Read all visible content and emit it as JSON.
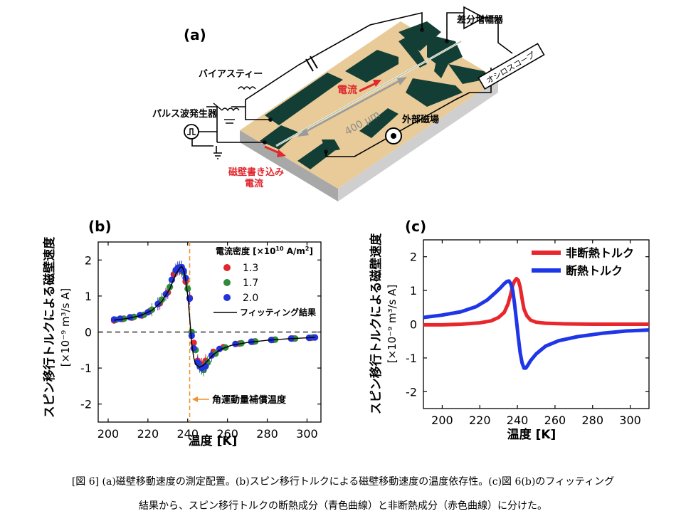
{
  "panel_a": {
    "label": "(a)",
    "diff_amp": "差分増幅器",
    "oscilloscope": "オシロスコープ",
    "bias_tee": "バイアスティー",
    "pulse_gen": "パルス波発生器",
    "current": "電流",
    "length": "400 μm",
    "ext_field": "外部磁場",
    "write_current_1": "磁壁書き込み",
    "write_current_2": "電流"
  },
  "chart_data": [
    {
      "type": "scatter",
      "panel": "(b)",
      "ylabel_1": "スピン移行トルクによる磁壁速度",
      "ylabel_2": "[×10⁻⁹ m³/s A]",
      "xlabel": "温度 [K]",
      "xlim": [
        195,
        307
      ],
      "ylim": [
        -2.5,
        2.5
      ],
      "xticks": [
        "200",
        "220",
        "240",
        "260",
        "280",
        "300"
      ],
      "yticks": [
        "-2",
        "-1",
        "0",
        "1",
        "2"
      ],
      "legend_title": "電流密度 [×10",
      "legend_title_sup": "10",
      "legend_title_rest": " A/m",
      "legend_title_sup2": "2",
      "legend_title_end": "]",
      "fit_label": "フィッティング結果",
      "annotation": "角運動量補償温度",
      "compensation_temperature": 241,
      "colors": {
        "red": "#e0282e",
        "green": "#2e8b3a",
        "blue": "#2233dd"
      },
      "series": [
        {
          "name": "1.3",
          "color": "#e0282e",
          "points": [
            [
              203,
              0.32
            ],
            [
              207,
              0.36
            ],
            [
              212,
              0.4
            ],
            [
              217,
              0.46
            ],
            [
              221,
              0.58
            ],
            [
              226,
              0.8
            ],
            [
              230,
              1.1
            ],
            [
              233,
              1.6
            ],
            [
              235,
              1.75
            ],
            [
              237,
              1.7
            ],
            [
              239,
              1.4
            ],
            [
              241,
              0.95
            ],
            [
              243,
              -0.3
            ],
            [
              245,
              -0.8
            ],
            [
              247,
              -0.9
            ],
            [
              249,
              -0.8
            ],
            [
              253,
              -0.55
            ],
            [
              258,
              -0.42
            ],
            [
              266,
              -0.32
            ],
            [
              273,
              -0.27
            ],
            [
              283,
              -0.22
            ],
            [
              293,
              -0.18
            ],
            [
              302,
              -0.16
            ]
          ]
        },
        {
          "name": "1.7",
          "color": "#2e8b3a",
          "points": [
            [
              204,
              0.34
            ],
            [
              208,
              0.37
            ],
            [
              213,
              0.42
            ],
            [
              218,
              0.48
            ],
            [
              222,
              0.62
            ],
            [
              227,
              0.9
            ],
            [
              231,
              1.25
            ],
            [
              234,
              1.7
            ],
            [
              236,
              1.8
            ],
            [
              238,
              1.65
            ],
            [
              240,
              1.2
            ],
            [
              242,
              0.0
            ],
            [
              244,
              -0.5
            ],
            [
              246,
              -0.95
            ],
            [
              248,
              -1.05
            ],
            [
              250,
              -0.85
            ],
            [
              254,
              -0.6
            ],
            [
              259,
              -0.43
            ],
            [
              267,
              -0.31
            ],
            [
              274,
              -0.26
            ],
            [
              284,
              -0.21
            ],
            [
              294,
              -0.18
            ],
            [
              303,
              -0.15
            ]
          ]
        },
        {
          "name": "2.0",
          "color": "#2233dd",
          "points": [
            [
              203,
              0.35
            ],
            [
              206,
              0.37
            ],
            [
              211,
              0.41
            ],
            [
              216,
              0.47
            ],
            [
              220,
              0.55
            ],
            [
              225,
              0.78
            ],
            [
              229,
              1.05
            ],
            [
              232,
              1.45
            ],
            [
              234,
              1.72
            ],
            [
              235,
              1.78
            ],
            [
              236,
              1.76
            ],
            [
              237,
              1.8
            ],
            [
              238,
              1.7
            ],
            [
              239,
              1.5
            ],
            [
              241,
              0.93
            ],
            [
              242,
              -0.1
            ],
            [
              243,
              -0.45
            ],
            [
              245,
              -0.85
            ],
            [
              247,
              -1.0
            ],
            [
              249,
              -0.95
            ],
            [
              252,
              -0.65
            ],
            [
              256,
              -0.47
            ],
            [
              264,
              -0.33
            ],
            [
              272,
              -0.27
            ],
            [
              282,
              -0.22
            ],
            [
              292,
              -0.18
            ],
            [
              301,
              -0.16
            ],
            [
              304,
              -0.15
            ]
          ]
        }
      ],
      "fit": [
        [
          203,
          0.33
        ],
        [
          210,
          0.38
        ],
        [
          216,
          0.45
        ],
        [
          222,
          0.6
        ],
        [
          227,
          0.85
        ],
        [
          231,
          1.2
        ],
        [
          234,
          1.6
        ],
        [
          236,
          1.78
        ],
        [
          237,
          1.82
        ],
        [
          238,
          1.72
        ],
        [
          239,
          1.45
        ],
        [
          240,
          1.0
        ],
        [
          241,
          0.4
        ],
        [
          242,
          -0.3
        ],
        [
          243,
          -0.7
        ],
        [
          244,
          -0.9
        ],
        [
          246,
          -0.98
        ],
        [
          248,
          -0.92
        ],
        [
          250,
          -0.8
        ],
        [
          253,
          -0.62
        ],
        [
          257,
          -0.47
        ],
        [
          262,
          -0.37
        ],
        [
          270,
          -0.29
        ],
        [
          280,
          -0.23
        ],
        [
          290,
          -0.19
        ],
        [
          304,
          -0.15
        ]
      ]
    },
    {
      "type": "line",
      "panel": "(c)",
      "ylabel_1": "スピン移行トルクによる磁壁速度",
      "ylabel_2": "[×10⁻⁹ m³/s A]",
      "xlabel": "温度 [K]",
      "xlim": [
        190,
        310
      ],
      "ylim": [
        -2.5,
        2.5
      ],
      "xticks": [
        "200",
        "220",
        "240",
        "260",
        "280",
        "300"
      ],
      "yticks": [
        "-2",
        "-1",
        "0",
        "1",
        "2"
      ],
      "series": [
        {
          "name": "非断熱トルク",
          "color": "#e8262c",
          "points": [
            [
              190,
              -0.02
            ],
            [
              200,
              -0.02
            ],
            [
              210,
              0.0
            ],
            [
              220,
              0.04
            ],
            [
              226,
              0.1
            ],
            [
              230,
              0.2
            ],
            [
              233,
              0.35
            ],
            [
              235,
              0.6
            ],
            [
              236.5,
              0.9
            ],
            [
              237.5,
              1.15
            ],
            [
              238.5,
              1.28
            ],
            [
              239.5,
              1.35
            ],
            [
              240.5,
              1.3
            ],
            [
              241.5,
              1.1
            ],
            [
              242.5,
              0.75
            ],
            [
              243.5,
              0.45
            ],
            [
              245,
              0.25
            ],
            [
              247,
              0.12
            ],
            [
              250,
              0.06
            ],
            [
              255,
              0.03
            ],
            [
              265,
              0.01
            ],
            [
              280,
              0.0
            ],
            [
              310,
              0.0
            ]
          ]
        },
        {
          "name": "断熱トルク",
          "color": "#1f35e8",
          "points": [
            [
              190,
              0.2
            ],
            [
              200,
              0.27
            ],
            [
              210,
              0.37
            ],
            [
              218,
              0.52
            ],
            [
              224,
              0.72
            ],
            [
              228,
              0.92
            ],
            [
              231,
              1.08
            ],
            [
              233,
              1.2
            ],
            [
              234.5,
              1.27
            ],
            [
              235.5,
              1.28
            ],
            [
              236.5,
              1.2
            ],
            [
              237.5,
              1.0
            ],
            [
              238.5,
              0.6
            ],
            [
              239.5,
              0.1
            ],
            [
              240.5,
              -0.4
            ],
            [
              241.5,
              -0.85
            ],
            [
              242.5,
              -1.15
            ],
            [
              243.5,
              -1.3
            ],
            [
              244.5,
              -1.3
            ],
            [
              245.5,
              -1.22
            ],
            [
              247,
              -1.08
            ],
            [
              250,
              -0.88
            ],
            [
              255,
              -0.65
            ],
            [
              262,
              -0.49
            ],
            [
              272,
              -0.37
            ],
            [
              285,
              -0.27
            ],
            [
              298,
              -0.2
            ],
            [
              310,
              -0.17
            ]
          ]
        }
      ]
    }
  ],
  "caption": {
    "line1": "[図 6] (a)磁壁移動速度の測定配置。(b)スピン移行トルクによる磁壁移動速度の温度依存性。(c)図 6(b)のフィッティング",
    "line2": "結果から、スピン移行トルクの断熱成分（青色曲線）と非断熱成分（赤色曲線）に分けた。"
  }
}
